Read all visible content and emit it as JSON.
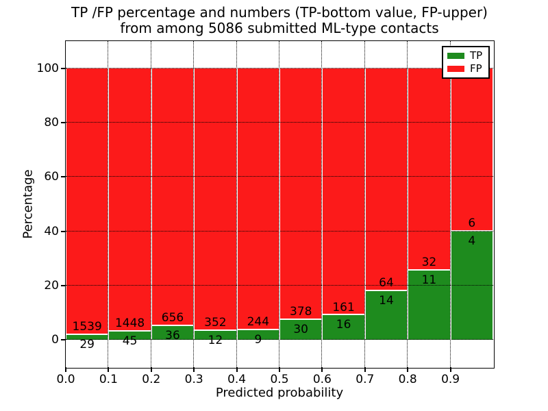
{
  "title": {
    "line1": "TP /FP percentage and numbers (TP-bottom value, FP-upper)",
    "line2": "from among 5086 submitted ML-type contacts"
  },
  "axes": {
    "xlabel": "Predicted probability",
    "ylabel": "Percentage",
    "x_tick_labels": [
      "0.0",
      "0.1",
      "0.2",
      "0.3",
      "0.4",
      "0.5",
      "0.6",
      "0.7",
      "0.8",
      "0.9"
    ],
    "x_tick_values": [
      0.0,
      0.1,
      0.2,
      0.3,
      0.4,
      0.5,
      0.6,
      0.7,
      0.8,
      0.9
    ],
    "y_tick_labels": [
      "0",
      "20",
      "40",
      "60",
      "80",
      "100"
    ],
    "y_tick_values": [
      0,
      20,
      40,
      60,
      80,
      100
    ],
    "xlim": [
      0.0,
      1.0
    ],
    "ylim": [
      -10,
      110
    ],
    "grid": "dotted"
  },
  "legend": {
    "items": [
      {
        "label": "TP",
        "color": "#1e8b1e"
      },
      {
        "label": "FP",
        "color": "#fc1a1a"
      }
    ],
    "position": "upper-right"
  },
  "colors": {
    "tp_green": "#1e8b1e",
    "fp_red": "#fc1a1a",
    "grid": "#000000",
    "bar_edge": "#ffffff",
    "background": "#ffffff",
    "text": "#000000"
  },
  "chart_data": {
    "type": "bar",
    "stacked": true,
    "normalized_to_percent_per_bin": true,
    "title": "TP /FP percentage and numbers (TP-bottom value, FP-upper) from among 5086 submitted ML-type contacts",
    "xlabel": "Predicted probability",
    "ylabel": "Percentage",
    "total_contacts": 5086,
    "bin_start": 0.0,
    "bin_width": 0.1,
    "bin_edges": [
      0.0,
      0.1,
      0.2,
      0.3,
      0.4,
      0.5,
      0.6,
      0.7,
      0.8,
      0.9,
      1.0
    ],
    "series": [
      {
        "name": "TP",
        "color": "#1e8b1e",
        "counts": [
          29,
          45,
          36,
          12,
          9,
          30,
          16,
          14,
          11,
          4
        ]
      },
      {
        "name": "FP",
        "color": "#fc1a1a",
        "counts": [
          1539,
          1448,
          656,
          352,
          244,
          378,
          161,
          64,
          32,
          6
        ]
      }
    ],
    "tp_percent_depicted": [
      1.85,
      3.01,
      5.2,
      3.3,
      3.56,
      7.35,
      9.04,
      17.95,
      25.58,
      40.0
    ],
    "label_rule": "FP count printed just above TP/FP boundary, TP count just below it",
    "ylim": [
      -10,
      110
    ],
    "xlim": [
      0.0,
      1.0
    ],
    "grid": "dotted",
    "legend_position": "upper-right"
  }
}
